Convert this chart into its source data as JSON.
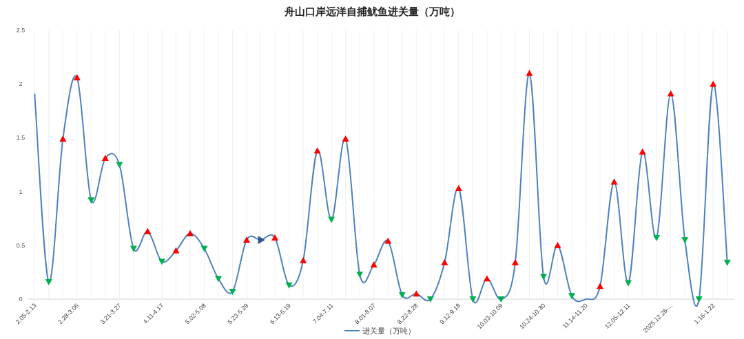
{
  "chart_data": {
    "type": "line",
    "title": "舟山口岸远洋自捕鱿鱼进关量（万吨）",
    "categories": [
      "2.05-2.13",
      null,
      null,
      "2.28-3.06",
      null,
      null,
      "3.21-3.27",
      null,
      null,
      "4.11-4.17",
      null,
      null,
      "5.02-5.08",
      null,
      null,
      "5.23-5.29",
      null,
      null,
      "6.13-6.19",
      null,
      null,
      "7.04-7.11",
      null,
      null,
      "8.01-8.07",
      null,
      null,
      "8.22-8.28",
      null,
      null,
      "9.12-9.18",
      null,
      null,
      "10.03-10.09",
      null,
      null,
      "10.24-10.30",
      null,
      null,
      "11.14-11.20",
      null,
      null,
      "12.05-12.11",
      null,
      null,
      "2025.12.26-...",
      null,
      null,
      "1.16-1.22",
      null
    ],
    "series": [
      {
        "name": "进关量（万吨）",
        "color": "#4f81bd",
        "values": [
          1.91,
          0.16,
          1.49,
          2.06,
          0.92,
          1.31,
          1.25,
          0.47,
          0.63,
          0.35,
          0.45,
          0.61,
          0.47,
          0.19,
          0.07,
          0.55,
          0.55,
          0.57,
          0.13,
          0.36,
          1.38,
          0.74,
          1.49,
          0.23,
          0.32,
          0.54,
          0.04,
          0.05,
          0,
          0.34,
          1.03,
          0,
          0.19,
          0,
          0.34,
          2.1,
          0.21,
          0.5,
          0.03,
          0,
          0.12,
          1.09,
          0.15,
          1.37,
          0.57,
          1.91,
          0.55,
          0,
          2.0,
          0.34
        ],
        "colors": [
          null,
          "#00b050",
          "#ff0000",
          "#ff0000",
          "#00b050",
          "#ff0000",
          "#00b050",
          "#00b050",
          "#ff0000",
          "#00b050",
          "#ff0000",
          "#ff0000",
          "#00b050",
          "#00b050",
          "#00b050",
          "#ff0000",
          "#2f5597",
          "#ff0000",
          "#00b050",
          "#ff0000",
          "#ff0000",
          "#00b050",
          "#ff0000",
          "#00b050",
          "#ff0000",
          "#ff0000",
          "#00b050",
          "#ff0000",
          "#00b050",
          "#ff0000",
          "#ff0000",
          "#00b050",
          "#ff0000",
          "#00b050",
          "#ff0000",
          "#ff0000",
          "#00b050",
          "#ff0000",
          "#00b050",
          null,
          "#ff0000",
          "#ff0000",
          "#00b050",
          "#ff0000",
          "#00b050",
          "#ff0000",
          "#00b050",
          "#00b050",
          "#ff0000",
          "#00b050"
        ]
      }
    ],
    "ylim": [
      0,
      2.5
    ],
    "yticks": [
      0,
      0.5,
      1,
      1.5,
      2,
      2.5
    ],
    "marker": "triangle",
    "grid": "x",
    "legend": "bottom"
  }
}
